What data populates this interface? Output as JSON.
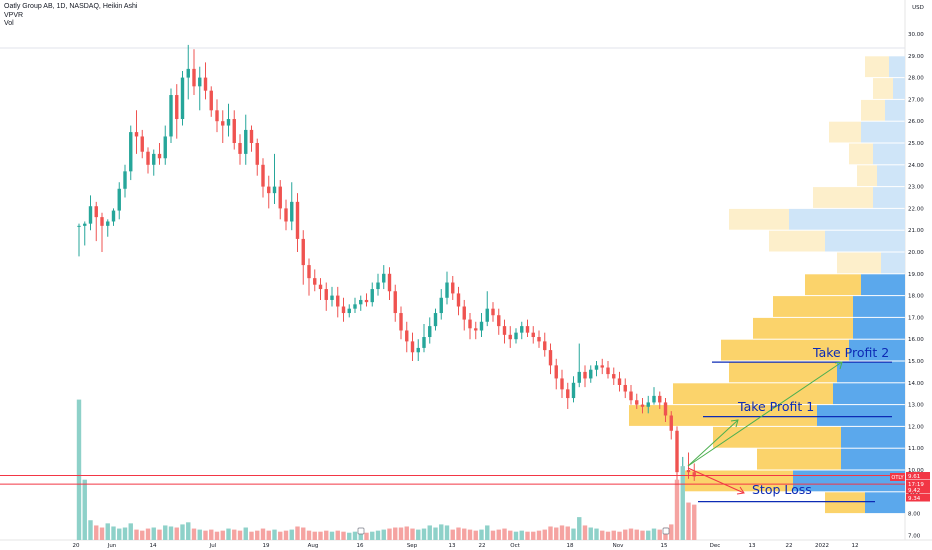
{
  "header": {
    "title": "Oatly Group AB, 1D, NASDAQ, Heikin Ashi",
    "indicators": [
      "VPVR",
      "Vol"
    ]
  },
  "colors": {
    "up": "#26a69a",
    "down": "#ef5350",
    "up_volume": "#8ed1c9",
    "down_volume": "#f5a3a1",
    "vp_yellow": "#fbd36b",
    "vp_yellow_light": "#fdefcb",
    "vp_blue": "#5ba8ec",
    "vp_blue_light": "#cfe5f8",
    "line_blue": "#0d2bb5",
    "line_red": "#f23645",
    "arrow_green": "#4caf50",
    "arrow_red": "#f23645"
  },
  "price_axis": {
    "currency": "USD",
    "ticks": [
      "30.00",
      "29.00",
      "28.00",
      "27.00",
      "26.00",
      "25.00",
      "24.00",
      "23.00",
      "22.00",
      "21.00",
      "20.00",
      "19.00",
      "18.00",
      "17.00",
      "16.00",
      "15.00",
      "14.00",
      "13.00",
      "12.00",
      "11.00",
      "10.00",
      "9.00",
      "8.00",
      "7.00"
    ],
    "symbol_tag": "OTLY",
    "labels": [
      {
        "text": "9.61",
        "color": "#f23645"
      },
      {
        "text": "17:19",
        "color": "#f23645"
      },
      {
        "text": "9.42",
        "color": "#f23645"
      },
      {
        "text": "9.34",
        "color": "#f23645"
      }
    ]
  },
  "time_axis": {
    "labels": [
      "20",
      "Jun",
      "14",
      "Jul",
      "19",
      "Aug",
      "16",
      "Sep",
      "13",
      "22",
      "Oct",
      "18",
      "Nov",
      "15",
      "Dec",
      "13",
      "22",
      "2022",
      "12"
    ]
  },
  "annotations": {
    "take_profit_2": "Take Profit 2",
    "take_profit_1": "Take Profit 1",
    "stop_loss": "Stop Loss",
    "take_profit_2_price": 14.95,
    "take_profit_1_price": 12.45,
    "stop_loss_price": 8.55,
    "resistance_band_top": 9.75,
    "resistance_band_bottom": 9.35
  },
  "chart_data": {
    "type": "candlestick",
    "style": "Heikin Ashi",
    "ylim": [
      7.0,
      30.7
    ],
    "candles": [
      [
        21.2,
        21.3,
        19.8,
        21.2
      ],
      [
        21.2,
        21.4,
        20.3,
        21.3
      ],
      [
        21.3,
        22.6,
        21.0,
        22.1
      ],
      [
        22.1,
        22.3,
        20.5,
        21.6
      ],
      [
        21.6,
        21.8,
        20.0,
        21.2
      ],
      [
        21.2,
        21.5,
        20.7,
        21.4
      ],
      [
        21.4,
        22.0,
        21.2,
        21.9
      ],
      [
        21.9,
        23.2,
        21.5,
        22.9
      ],
      [
        22.9,
        24.0,
        22.5,
        23.7
      ],
      [
        23.7,
        25.8,
        23.3,
        25.5
      ],
      [
        25.5,
        26.5,
        24.5,
        25.3
      ],
      [
        25.3,
        25.6,
        24.3,
        24.6
      ],
      [
        24.6,
        24.8,
        23.6,
        24.0
      ],
      [
        24.0,
        24.7,
        23.5,
        24.5
      ],
      [
        24.5,
        25.0,
        24.0,
        24.3
      ],
      [
        24.3,
        25.8,
        24.0,
        25.3
      ],
      [
        25.3,
        27.5,
        25.0,
        27.2
      ],
      [
        27.2,
        27.7,
        25.2,
        26.1
      ],
      [
        26.1,
        28.3,
        25.8,
        28.0
      ],
      [
        28.0,
        29.5,
        27.0,
        28.4
      ],
      [
        28.4,
        29.3,
        27.2,
        27.6
      ],
      [
        27.6,
        28.5,
        26.5,
        28.0
      ],
      [
        28.0,
        28.7,
        27.0,
        27.4
      ],
      [
        27.4,
        27.6,
        26.2,
        26.5
      ],
      [
        26.5,
        27.0,
        25.5,
        26.0
      ],
      [
        26.0,
        26.5,
        25.0,
        25.8
      ],
      [
        25.8,
        26.8,
        25.3,
        26.1
      ],
      [
        26.1,
        26.5,
        24.7,
        25.0
      ],
      [
        25.0,
        25.4,
        24.0,
        24.5
      ],
      [
        24.5,
        26.3,
        24.0,
        25.6
      ],
      [
        25.6,
        25.8,
        24.6,
        25.0
      ],
      [
        25.0,
        25.2,
        23.5,
        24.0
      ],
      [
        24.0,
        24.3,
        22.5,
        23.0
      ],
      [
        23.0,
        23.5,
        22.0,
        22.7
      ],
      [
        22.7,
        24.5,
        22.2,
        23.0
      ],
      [
        23.0,
        23.3,
        21.5,
        22.0
      ],
      [
        22.0,
        22.4,
        21.0,
        21.4
      ],
      [
        21.4,
        23.2,
        21.0,
        22.3
      ],
      [
        22.3,
        22.7,
        20.0,
        20.6
      ],
      [
        20.6,
        21.0,
        18.5,
        19.4
      ],
      [
        19.4,
        19.7,
        18.0,
        18.8
      ],
      [
        18.8,
        19.2,
        18.2,
        18.5
      ],
      [
        18.5,
        18.8,
        17.8,
        18.3
      ],
      [
        18.3,
        18.6,
        17.3,
        17.8
      ],
      [
        17.8,
        18.4,
        17.5,
        18.0
      ],
      [
        18.0,
        18.4,
        17.0,
        17.5
      ],
      [
        17.5,
        17.9,
        16.8,
        17.2
      ],
      [
        17.2,
        17.6,
        17.0,
        17.4
      ],
      [
        17.4,
        17.9,
        17.2,
        17.6
      ],
      [
        17.6,
        18.0,
        17.3,
        17.8
      ],
      [
        17.8,
        18.1,
        17.5,
        17.7
      ],
      [
        17.7,
        18.6,
        17.5,
        18.3
      ],
      [
        18.3,
        19.0,
        18.0,
        18.6
      ],
      [
        18.6,
        19.4,
        18.3,
        19.0
      ],
      [
        19.0,
        19.3,
        17.8,
        18.2
      ],
      [
        18.2,
        18.5,
        16.8,
        17.2
      ],
      [
        17.2,
        17.5,
        16.0,
        16.4
      ],
      [
        16.4,
        16.8,
        15.4,
        15.9
      ],
      [
        15.9,
        16.3,
        15.0,
        15.4
      ],
      [
        15.4,
        16.0,
        15.0,
        15.6
      ],
      [
        15.6,
        16.7,
        15.4,
        16.1
      ],
      [
        16.1,
        17.0,
        15.8,
        16.6
      ],
      [
        16.6,
        17.4,
        16.4,
        17.2
      ],
      [
        17.2,
        18.3,
        16.9,
        17.9
      ],
      [
        17.9,
        19.1,
        17.6,
        18.6
      ],
      [
        18.6,
        18.9,
        17.8,
        18.1
      ],
      [
        18.1,
        18.4,
        17.1,
        17.5
      ],
      [
        17.5,
        17.8,
        16.4,
        16.9
      ],
      [
        16.9,
        17.2,
        16.0,
        16.5
      ],
      [
        16.5,
        16.8,
        16.0,
        16.4
      ],
      [
        16.4,
        17.2,
        16.1,
        16.8
      ],
      [
        16.8,
        18.2,
        16.6,
        17.4
      ],
      [
        17.4,
        17.7,
        16.8,
        17.1
      ],
      [
        17.1,
        17.4,
        16.2,
        16.6
      ],
      [
        16.6,
        16.9,
        15.8,
        16.2
      ],
      [
        16.2,
        16.6,
        15.6,
        16.0
      ],
      [
        16.0,
        16.5,
        15.8,
        16.3
      ],
      [
        16.3,
        16.8,
        16.0,
        16.6
      ],
      [
        16.6,
        16.9,
        16.1,
        16.3
      ],
      [
        16.3,
        16.6,
        15.8,
        16.1
      ],
      [
        16.1,
        16.4,
        15.6,
        15.9
      ],
      [
        15.9,
        16.3,
        15.2,
        15.5
      ],
      [
        15.5,
        15.8,
        14.4,
        14.8
      ],
      [
        14.8,
        15.1,
        13.7,
        14.2
      ],
      [
        14.2,
        14.6,
        13.3,
        13.7
      ],
      [
        13.7,
        14.0,
        12.8,
        13.3
      ],
      [
        13.3,
        14.3,
        13.1,
        14.0
      ],
      [
        14.0,
        15.8,
        13.8,
        14.5
      ],
      [
        14.5,
        14.8,
        13.8,
        14.2
      ],
      [
        14.2,
        14.8,
        14.0,
        14.6
      ],
      [
        14.6,
        15.0,
        14.3,
        14.8
      ],
      [
        14.8,
        15.1,
        14.4,
        14.7
      ],
      [
        14.7,
        15.0,
        14.2,
        14.4
      ],
      [
        14.4,
        14.7,
        13.9,
        14.2
      ],
      [
        14.2,
        14.5,
        13.6,
        13.9
      ],
      [
        13.9,
        14.2,
        13.3,
        13.6
      ],
      [
        13.6,
        13.9,
        13.0,
        13.2
      ],
      [
        13.2,
        13.5,
        12.8,
        13.0
      ],
      [
        13.0,
        13.3,
        12.6,
        12.9
      ],
      [
        12.9,
        13.4,
        12.6,
        13.1
      ],
      [
        13.1,
        13.8,
        13.0,
        13.4
      ],
      [
        13.4,
        13.6,
        12.8,
        13.1
      ],
      [
        13.1,
        13.3,
        12.2,
        12.5
      ],
      [
        12.5,
        12.7,
        11.4,
        11.8
      ],
      [
        11.8,
        12.0,
        9.4,
        9.9
      ],
      [
        9.9,
        10.6,
        9.5,
        10.0
      ],
      [
        10.0,
        10.8,
        9.6,
        9.9
      ],
      [
        9.9,
        10.3,
        9.5,
        9.7
      ]
    ],
    "volumes": [
      [
        13.5,
        1
      ],
      [
        5.8,
        1
      ],
      [
        1.9,
        1
      ],
      [
        1.4,
        0
      ],
      [
        1.2,
        0
      ],
      [
        1.6,
        1
      ],
      [
        1.3,
        1
      ],
      [
        1.1,
        1
      ],
      [
        1.2,
        1
      ],
      [
        1.6,
        1
      ],
      [
        1.0,
        0
      ],
      [
        0.9,
        0
      ],
      [
        1.1,
        0
      ],
      [
        1.2,
        1
      ],
      [
        1.0,
        0
      ],
      [
        1.4,
        1
      ],
      [
        1.3,
        1
      ],
      [
        1.2,
        0
      ],
      [
        1.5,
        1
      ],
      [
        1.7,
        1
      ],
      [
        1.1,
        0
      ],
      [
        1.0,
        1
      ],
      [
        0.9,
        0
      ],
      [
        1.0,
        0
      ],
      [
        0.8,
        0
      ],
      [
        0.9,
        0
      ],
      [
        1.1,
        1
      ],
      [
        1.0,
        0
      ],
      [
        0.9,
        0
      ],
      [
        1.2,
        1
      ],
      [
        0.8,
        0
      ],
      [
        0.9,
        0
      ],
      [
        1.1,
        0
      ],
      [
        0.9,
        0
      ],
      [
        1.0,
        1
      ],
      [
        0.8,
        0
      ],
      [
        0.9,
        0
      ],
      [
        1.0,
        1
      ],
      [
        1.3,
        0
      ],
      [
        1.2,
        0
      ],
      [
        0.9,
        0
      ],
      [
        0.8,
        0
      ],
      [
        0.8,
        0
      ],
      [
        0.9,
        0
      ],
      [
        0.8,
        1
      ],
      [
        0.9,
        0
      ],
      [
        0.8,
        0
      ],
      [
        0.7,
        1
      ],
      [
        0.8,
        1
      ],
      [
        0.9,
        1
      ],
      [
        0.7,
        0
      ],
      [
        0.8,
        1
      ],
      [
        0.9,
        1
      ],
      [
        1.0,
        1
      ],
      [
        1.1,
        0
      ],
      [
        1.2,
        0
      ],
      [
        1.2,
        0
      ],
      [
        1.3,
        0
      ],
      [
        1.1,
        0
      ],
      [
        1.0,
        1
      ],
      [
        1.1,
        1
      ],
      [
        1.4,
        1
      ],
      [
        1.2,
        1
      ],
      [
        1.5,
        1
      ],
      [
        1.4,
        1
      ],
      [
        1.0,
        0
      ],
      [
        1.2,
        0
      ],
      [
        1.1,
        0
      ],
      [
        1.0,
        0
      ],
      [
        0.9,
        0
      ],
      [
        1.0,
        1
      ],
      [
        1.4,
        1
      ],
      [
        0.9,
        0
      ],
      [
        1.0,
        0
      ],
      [
        1.1,
        0
      ],
      [
        0.9,
        0
      ],
      [
        0.8,
        1
      ],
      [
        0.9,
        1
      ],
      [
        0.8,
        0
      ],
      [
        0.8,
        0
      ],
      [
        0.9,
        0
      ],
      [
        1.0,
        0
      ],
      [
        1.3,
        0
      ],
      [
        1.2,
        0
      ],
      [
        1.4,
        0
      ],
      [
        1.3,
        0
      ],
      [
        1.1,
        1
      ],
      [
        2.2,
        1
      ],
      [
        1.4,
        0
      ],
      [
        1.2,
        1
      ],
      [
        1.1,
        1
      ],
      [
        0.9,
        0
      ],
      [
        0.8,
        0
      ],
      [
        0.9,
        0
      ],
      [
        0.8,
        0
      ],
      [
        1.0,
        0
      ],
      [
        1.1,
        0
      ],
      [
        1.0,
        0
      ],
      [
        0.9,
        0
      ],
      [
        0.9,
        1
      ],
      [
        1.1,
        1
      ],
      [
        1.0,
        0
      ],
      [
        1.2,
        0
      ],
      [
        1.5,
        0
      ],
      [
        5.8,
        0
      ],
      [
        7.1,
        1
      ],
      [
        3.6,
        0
      ],
      [
        3.4,
        0
      ]
    ],
    "volume_profile": [
      {
        "price": 28.5,
        "up": 0.06,
        "down": 0.04
      },
      {
        "price": 27.5,
        "up": 0.05,
        "down": 0.03
      },
      {
        "price": 26.5,
        "up": 0.06,
        "down": 0.05
      },
      {
        "price": 25.5,
        "up": 0.08,
        "down": 0.11
      },
      {
        "price": 24.5,
        "up": 0.06,
        "down": 0.08
      },
      {
        "price": 23.5,
        "up": 0.05,
        "down": 0.07
      },
      {
        "price": 22.5,
        "up": 0.15,
        "down": 0.08
      },
      {
        "price": 21.5,
        "up": 0.15,
        "down": 0.29
      },
      {
        "price": 20.5,
        "up": 0.14,
        "down": 0.2
      },
      {
        "price": 19.5,
        "up": 0.11,
        "down": 0.06
      },
      {
        "price": 18.5,
        "up": 0.14,
        "down": 0.11
      },
      {
        "price": 17.5,
        "up": 0.2,
        "down": 0.13
      },
      {
        "price": 16.5,
        "up": 0.25,
        "down": 0.13
      },
      {
        "price": 15.5,
        "up": 0.32,
        "down": 0.14
      },
      {
        "price": 14.5,
        "up": 0.27,
        "down": 0.17
      },
      {
        "price": 13.5,
        "up": 0.4,
        "down": 0.18
      },
      {
        "price": 12.5,
        "up": 0.47,
        "down": 0.22
      },
      {
        "price": 11.5,
        "up": 0.32,
        "down": 0.16
      },
      {
        "price": 10.5,
        "up": 0.21,
        "down": 0.16
      },
      {
        "price": 9.5,
        "up": 0.27,
        "down": 0.28
      },
      {
        "price": 8.5,
        "up": 0.1,
        "down": 0.1
      }
    ]
  }
}
